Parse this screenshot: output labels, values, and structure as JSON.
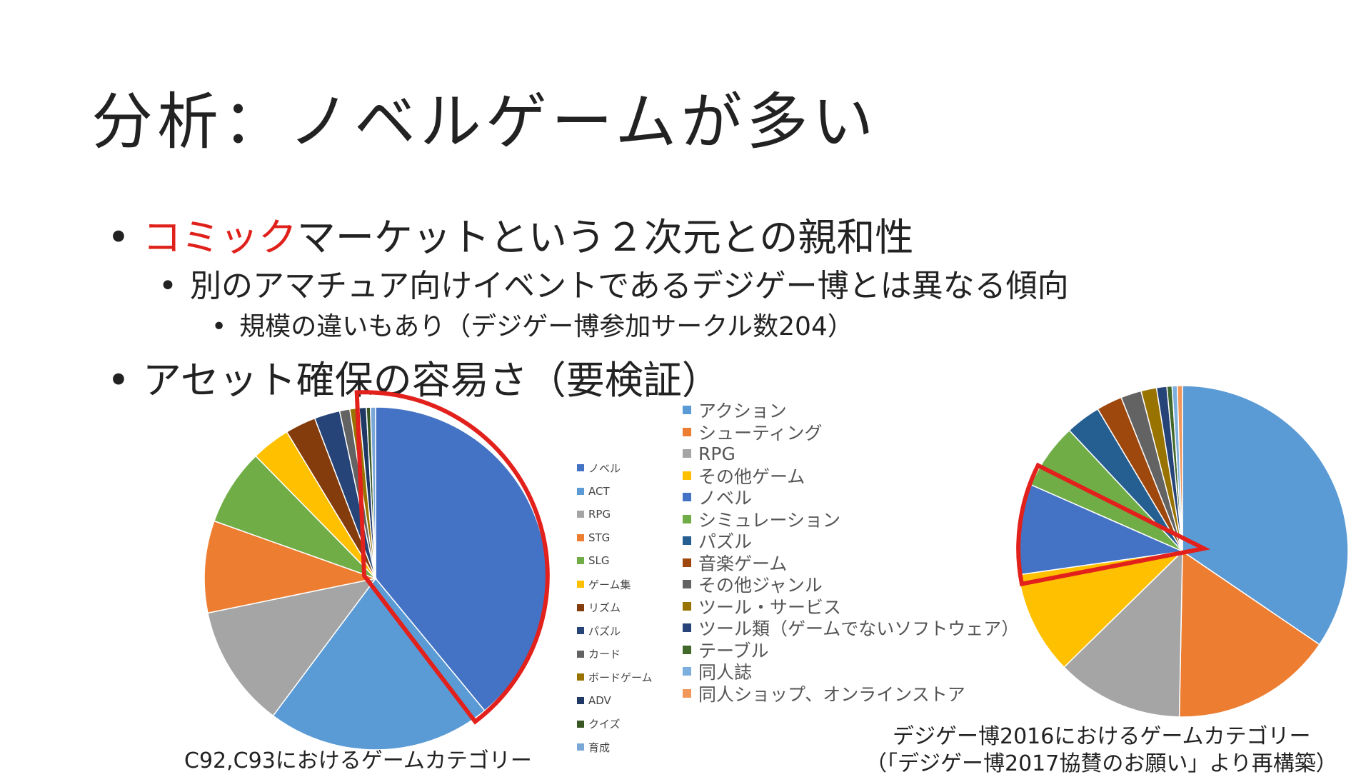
{
  "slide": {
    "title": "分析：ノベルゲームが多い",
    "bullets": {
      "b1_red": "コミック",
      "b1_rest": "マーケットという２次元との親和性",
      "b2": "別のアマチュア向けイベントであるデジゲー博とは異なる傾向",
      "b3": "規模の違いもあり（デジゲー博参加サークル数204）",
      "b4": "アセット確保の容易さ（要検証）"
    },
    "caption_left": "C92,C93におけるゲームカテゴリー",
    "caption_right_1": "デジゲー博2016におけるゲームカテゴリー",
    "caption_right_2": "（「デジゲー博2017協賛のお願い」より再構築）",
    "highlight_color": "#e3211c"
  },
  "chart_data": [
    {
      "type": "pie",
      "title": "",
      "legend": "right",
      "categories": [
        "ノベル",
        "ACT",
        "RPG",
        "STG",
        "SLG",
        "ゲーム集",
        "リズム",
        "パズル",
        "カード",
        "ボードゲーム",
        "ADV",
        "クイズ",
        "育成"
      ],
      "values": [
        40.5,
        22.0,
        12.0,
        9.0,
        7.5,
        3.8,
        3.0,
        2.5,
        1.0,
        0.9,
        0.7,
        0.4,
        0.5
      ],
      "colors": [
        "#4472c4",
        "#5b9bd5",
        "#a5a5a5",
        "#ed7d31",
        "#70ad47",
        "#ffc000",
        "#843c0c",
        "#264478",
        "#636363",
        "#997300",
        "#1f3864",
        "#385723",
        "#7ba7d8"
      ],
      "highlight": "ノベル"
    },
    {
      "type": "pie",
      "title": "",
      "legend": "left",
      "categories": [
        "アクション",
        "シューティング",
        "RPG",
        "その他ゲーム",
        "ノベル",
        "シミュレーション",
        "パズル",
        "音楽ゲーム",
        "その他ジャンル",
        "ツール・サービス",
        "ツール類（ゲームでないソフトウェア）",
        "テーブル",
        "同人誌",
        "同人ショップ、オンラインストア"
      ],
      "values": [
        34.3,
        15.7,
        12.3,
        10.0,
        8.8,
        6.4,
        3.4,
        2.5,
        2.0,
        1.5,
        1.0,
        0.5,
        0.5,
        0.5
      ],
      "colors": [
        "#5b9bd5",
        "#ed7d31",
        "#a5a5a5",
        "#ffc000",
        "#4472c4",
        "#70ad47",
        "#255e91",
        "#9e480e",
        "#636363",
        "#997300",
        "#264478",
        "#43682b",
        "#7cafdd",
        "#f1975a"
      ],
      "highlight": "ノベル"
    }
  ]
}
